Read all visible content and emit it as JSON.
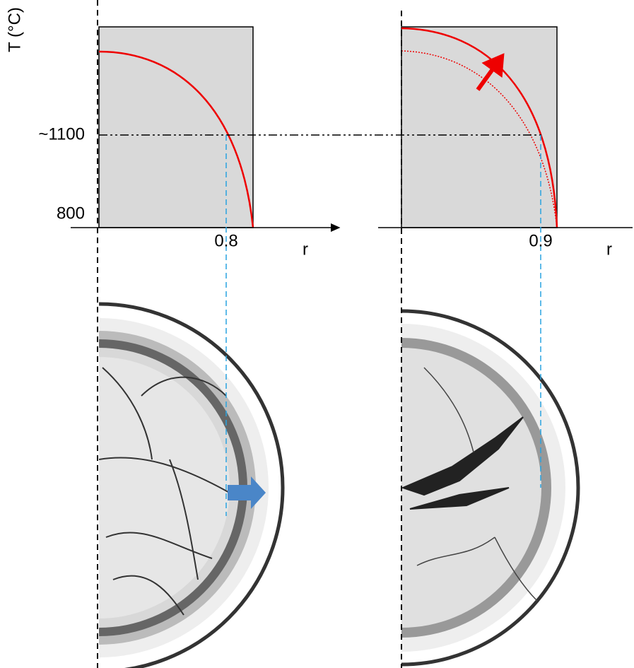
{
  "left_plot": {
    "y_axis_label": "T (°C)",
    "y_labels": [
      "~1100",
      "800"
    ],
    "x_label": "0.8",
    "axis_name": "r"
  },
  "right_plot": {
    "x_label": "0.9",
    "axis_name": "r"
  }
}
